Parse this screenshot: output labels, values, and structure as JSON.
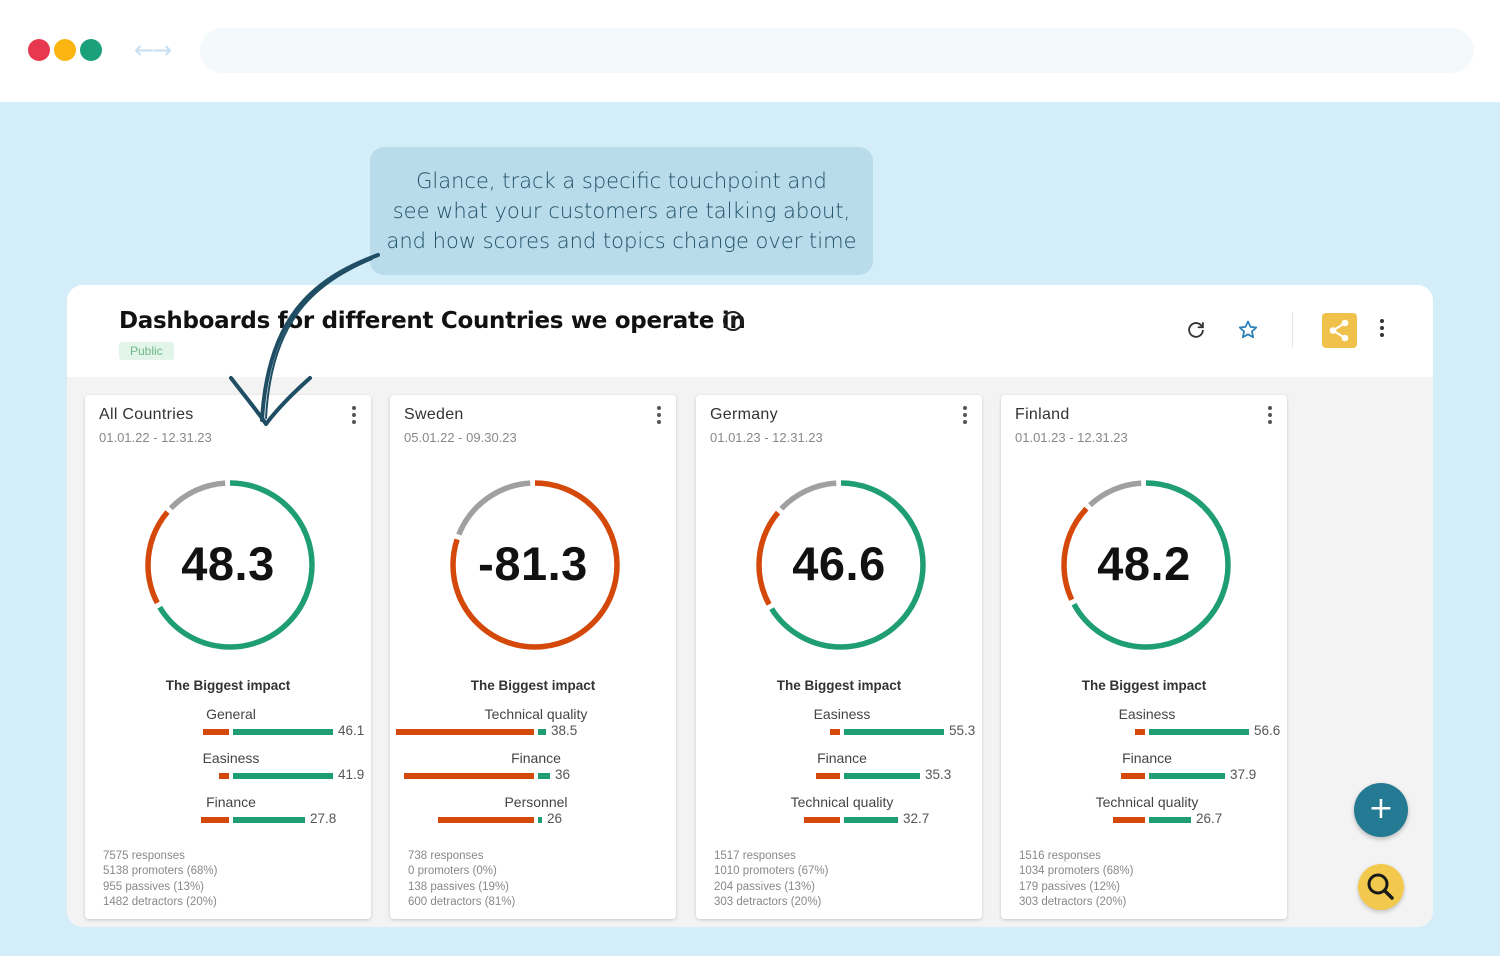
{
  "browser": {
    "nav_arrows": "←→"
  },
  "callout": {
    "lines": [
      "Glance, track a specific touchpoint and",
      "see what your customers are talking about,",
      "and how scores and topics change over time"
    ]
  },
  "dashboard": {
    "title": "Dashboards for different Countries we operate in",
    "info_glyph": "i",
    "badge": "Public",
    "icons": [
      "refresh-icon",
      "star-icon",
      "share-icon",
      "more-vertical-icon"
    ]
  },
  "colors": {
    "detractor": "#d4480a",
    "promoter": "#1f9e75",
    "passive": "#a0a0a0",
    "share": "#f0c24b",
    "fab": "#257a93"
  },
  "impact_title": "The Biggest impact",
  "cards": [
    {
      "name": "All Countries",
      "date_range": "01.01.22 - 12.31.23",
      "score": "48.3",
      "promoters_pct": 0.68,
      "passives_pct": 0.13,
      "detractors_pct": 0.2,
      "drivers": [
        {
          "label": "General",
          "red_pct": 0.13,
          "green_pct": 0.5,
          "value": "46.1"
        },
        {
          "label": "Easiness",
          "red_pct": 0.05,
          "green_pct": 0.5,
          "value": "41.9"
        },
        {
          "label": "Finance",
          "red_pct": 0.14,
          "green_pct": 0.36,
          "value": "27.8"
        }
      ],
      "stats": [
        "7575 responses",
        "5138 promoters (68%)",
        "955 passives (13%)",
        "1482 detractors (20%)"
      ]
    },
    {
      "name": "Sweden",
      "date_range": "05.01.22 - 09.30.23",
      "score": "-81.3",
      "promoters_pct": 0.0,
      "passives_pct": 0.19,
      "detractors_pct": 0.81,
      "drivers": [
        {
          "label": "Technical quality",
          "red_pct": 0.69,
          "green_pct": 0.04,
          "value": "38.5"
        },
        {
          "label": "Finance",
          "red_pct": 0.65,
          "green_pct": 0.06,
          "value": "36"
        },
        {
          "label": "Personnel",
          "red_pct": 0.48,
          "green_pct": 0.02,
          "value": "26"
        }
      ],
      "stats": [
        "738 responses",
        "0 promoters (0%)",
        "138 passives (19%)",
        "600 detractors (81%)"
      ]
    },
    {
      "name": "Germany",
      "date_range": "01.01.23 - 12.31.23",
      "score": "46.6",
      "promoters_pct": 0.67,
      "passives_pct": 0.13,
      "detractors_pct": 0.2,
      "drivers": [
        {
          "label": "Easiness",
          "red_pct": 0.05,
          "green_pct": 0.5,
          "value": "55.3"
        },
        {
          "label": "Finance",
          "red_pct": 0.12,
          "green_pct": 0.38,
          "value": "35.3"
        },
        {
          "label": "Technical quality",
          "red_pct": 0.18,
          "green_pct": 0.27,
          "value": "32.7"
        }
      ],
      "stats": [
        "1517 responses",
        "1010 promoters (67%)",
        "204 passives (13%)",
        "303 detractors (20%)"
      ]
    },
    {
      "name": "Finland",
      "date_range": "01.01.23 - 12.31.23",
      "score": "48.2",
      "promoters_pct": 0.68,
      "passives_pct": 0.12,
      "detractors_pct": 0.2,
      "drivers": [
        {
          "label": "Easiness",
          "red_pct": 0.05,
          "green_pct": 0.5,
          "value": "56.6"
        },
        {
          "label": "Finance",
          "red_pct": 0.12,
          "green_pct": 0.38,
          "value": "37.9"
        },
        {
          "label": "Technical quality",
          "red_pct": 0.16,
          "green_pct": 0.21,
          "value": "26.7"
        }
      ],
      "stats": [
        "1516 responses",
        "1034 promoters (68%)",
        "179 passives (12%)",
        "303 detractors (20%)"
      ]
    }
  ],
  "fab": {
    "add_glyph": "+"
  }
}
